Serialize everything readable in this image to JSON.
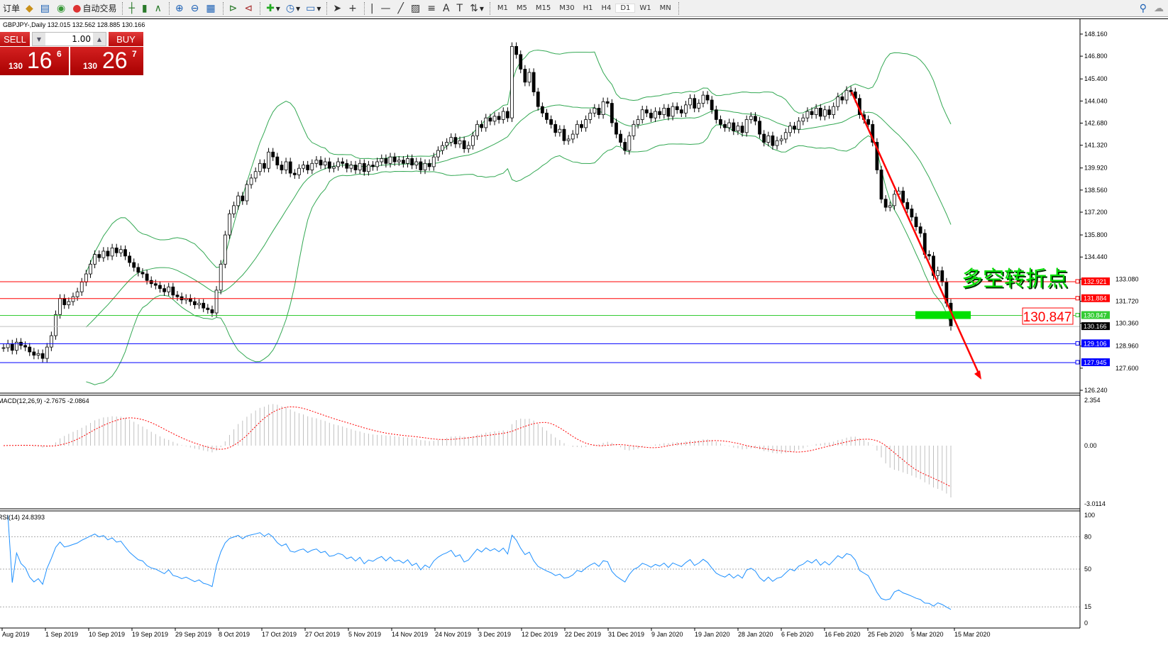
{
  "toolbar": {
    "items": [
      {
        "label": "订单",
        "icon": "order-icon"
      },
      {
        "label": "",
        "icon": "folder-icon"
      },
      {
        "label": "",
        "icon": "terminal-icon"
      },
      {
        "label": "",
        "icon": "signal-icon"
      },
      {
        "label": "自动交易",
        "icon": "autotrade-icon"
      }
    ],
    "timeframes": [
      "M1",
      "M5",
      "M15",
      "M30",
      "H1",
      "H4",
      "D1",
      "W1",
      "MN"
    ],
    "active_timeframe": "D1"
  },
  "chart": {
    "header": "GBPJPY-,Daily  132.015 132.562 128.885 130.166",
    "annotation": "多空转折点",
    "annotation_color": "#00e000",
    "level_callout": "130.847",
    "macd_label": "MACD(12,26,9) -2.7675 -2.0864",
    "rsi_label": "RSI(14) 24.8393"
  },
  "trade_panel": {
    "sell_label": "SELL",
    "buy_label": "BUY",
    "lot": "1.00",
    "sell_price": {
      "small": "130",
      "main": "16",
      "pip": "6"
    },
    "buy_price": {
      "small": "130",
      "main": "26",
      "pip": "7"
    }
  },
  "chart_data": {
    "type": "candlestick",
    "symbol": "GBPJPY-",
    "timeframe": "Daily",
    "ylim": [
      126.24,
      148.16
    ],
    "price_ticks": [
      "148.160",
      "146.800",
      "145.400",
      "144.040",
      "142.680",
      "141.320",
      "139.920",
      "138.560",
      "137.200",
      "135.800",
      "134.440",
      "133.080",
      "131.720",
      "130.360",
      "128.960",
      "127.600",
      "126.240"
    ],
    "closes": [
      128.86,
      129.1,
      128.7,
      129.2,
      129.0,
      128.9,
      128.6,
      128.4,
      128.5,
      128.2,
      128.9,
      129.6,
      130.9,
      131.9,
      131.5,
      131.7,
      132.0,
      132.3,
      132.9,
      133.4,
      134.0,
      134.6,
      134.4,
      134.8,
      134.5,
      135.0,
      134.7,
      134.9,
      134.5,
      134.1,
      133.8,
      133.5,
      133.4,
      133.0,
      132.8,
      132.7,
      132.5,
      132.3,
      132.6,
      132.1,
      132.0,
      131.8,
      131.9,
      131.7,
      131.5,
      131.6,
      131.3,
      131.2,
      131.0,
      132.4,
      134.0,
      135.8,
      137.1,
      137.6,
      138.2,
      137.9,
      138.9,
      139.3,
      139.7,
      140.2,
      139.9,
      140.9,
      140.6,
      140.1,
      139.8,
      140.3,
      139.6,
      139.5,
      139.9,
      140.1,
      139.8,
      140.2,
      140.4,
      140.1,
      140.3,
      139.9,
      140.0,
      140.3,
      140.2,
      139.9,
      140.1,
      139.8,
      140.2,
      139.7,
      140.1,
      140.0,
      140.3,
      140.5,
      140.2,
      140.6,
      140.3,
      140.4,
      140.2,
      140.5,
      140.1,
      140.3,
      139.8,
      140.2,
      140.0,
      140.6,
      141.0,
      141.3,
      141.5,
      141.8,
      141.4,
      141.6,
      141.1,
      141.3,
      141.9,
      142.6,
      142.4,
      143.0,
      142.8,
      143.1,
      142.9,
      143.4,
      143.0,
      147.4,
      146.9,
      146.0,
      145.2,
      145.8,
      144.6,
      143.7,
      143.3,
      142.9,
      142.6,
      142.1,
      142.3,
      141.6,
      141.7,
      142.0,
      142.6,
      142.4,
      142.9,
      143.3,
      143.6,
      143.2,
      144.0,
      143.9,
      142.7,
      142.0,
      141.5,
      141.0,
      141.9,
      142.6,
      142.9,
      143.5,
      143.3,
      143.0,
      143.4,
      143.2,
      143.6,
      143.1,
      143.7,
      143.5,
      143.3,
      143.8,
      144.2,
      143.6,
      143.9,
      144.4,
      144.1,
      143.5,
      142.9,
      142.6,
      142.4,
      142.7,
      142.2,
      142.5,
      142.1,
      142.9,
      143.1,
      142.8,
      142.0,
      141.5,
      141.9,
      141.3,
      141.6,
      141.7,
      142.1,
      142.5,
      142.3,
      142.8,
      143.0,
      143.4,
      143.2,
      143.6,
      143.1,
      143.5,
      143.2,
      143.7,
      144.3,
      144.1,
      144.7,
      144.6,
      144.2,
      143.2,
      142.9,
      142.6,
      141.5,
      139.8,
      138.0,
      137.5,
      137.6,
      138.3,
      138.5,
      137.8,
      137.4,
      136.9,
      136.3,
      135.9,
      134.6,
      134.5,
      133.3,
      133.6,
      132.9,
      131.6,
      130.166
    ],
    "bollinger": {
      "period": 20,
      "deviation": 2,
      "color": "#33a853"
    },
    "hlines": [
      {
        "price": 132.921,
        "label": "132.921",
        "color": "#ff0000"
      },
      {
        "price": 131.884,
        "label": "131.884",
        "color": "#ff0000"
      },
      {
        "price": 130.847,
        "label": "130.847",
        "color": "#33cc33"
      },
      {
        "price": 130.166,
        "label": "130.166",
        "color": "#000000"
      },
      {
        "price": 129.106,
        "label": "129.106",
        "color": "#0000ff"
      },
      {
        "price": 127.945,
        "label": "127.945",
        "color": "#0000ff"
      }
    ],
    "trend_arrow": {
      "from": {
        "date": "20 Feb 2020",
        "price": 144.6
      },
      "to": {
        "date": "17 Mar 2020",
        "price": 126.9
      },
      "color": "#ff0000"
    },
    "zone": {
      "price": 130.847,
      "color": "#00e000"
    },
    "dates": [
      "Aug 2019",
      "1 Sep 2019",
      "10 Sep 2019",
      "19 Sep 2019",
      "29 Sep 2019",
      "8 Oct 2019",
      "17 Oct 2019",
      "27 Oct 2019",
      "5 Nov 2019",
      "14 Nov 2019",
      "24 Nov 2019",
      "3 Dec 2019",
      "12 Dec 2019",
      "22 Dec 2019",
      "31 Dec 2019",
      "9 Jan 2020",
      "19 Jan 2020",
      "28 Jan 2020",
      "6 Feb 2020",
      "16 Feb 2020",
      "25 Feb 2020",
      "5 Mar 2020",
      "15 Mar 2020"
    ],
    "macd": {
      "params": [
        12,
        26,
        9
      ],
      "ylim": [
        -3.0114,
        2.354
      ],
      "ticks": [
        "2.354",
        "0.00",
        "-3.0114"
      ],
      "hist_color": "#c0c0c0",
      "signal_color": "#ff0000"
    },
    "rsi": {
      "period": 14,
      "ylim": [
        0,
        100
      ],
      "ticks": [
        "100",
        "80",
        "50",
        "15",
        "0"
      ],
      "levels": [
        80,
        50,
        15
      ],
      "color": "#1e90ff"
    }
  }
}
